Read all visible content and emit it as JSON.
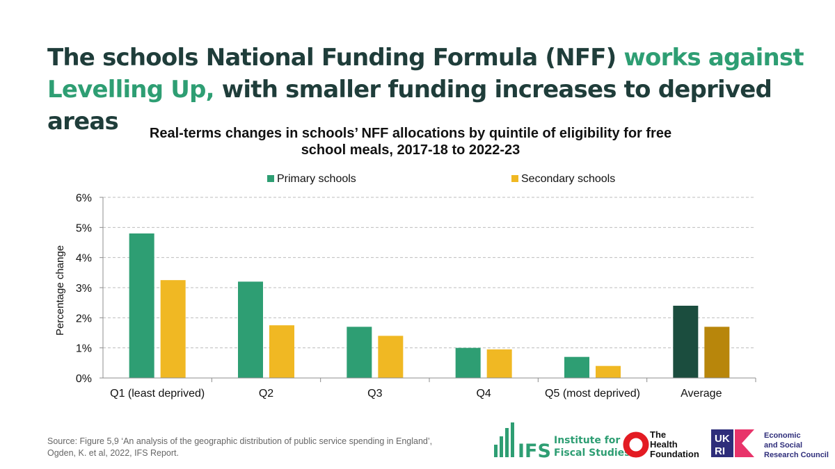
{
  "headline": {
    "part1": "The schools National Funding Formula (NFF) ",
    "highlight": "works against Levelling Up,",
    "part2": " with smaller funding increases to deprived areas"
  },
  "colors": {
    "headline": "#1f3d3a",
    "highlight": "#2e9e73",
    "primary": "#2e9e73",
    "secondary": "#f0b823",
    "primary_avg": "#1b4d3e",
    "secondary_avg": "#b8860b"
  },
  "chart_data": {
    "type": "bar",
    "title": "Real-terms changes in schools’ NFF allocations by quintile of eligibility for free school meals, 2017-18 to 2022-23",
    "title_lines": [
      "Real-terms changes in schools’ NFF allocations by quintile of eligibility for free",
      "school meals, 2017-18 to 2022-23"
    ],
    "ylabel": "Percentage change",
    "xlabel": "",
    "ylim": [
      0,
      6
    ],
    "yticks": [
      0,
      1,
      2,
      3,
      4,
      5,
      6
    ],
    "ytick_labels": [
      "0%",
      "1%",
      "2%",
      "3%",
      "4%",
      "5%",
      "6%"
    ],
    "grid": true,
    "legend": "top",
    "categories": [
      "Q1 (least deprived)",
      "Q2",
      "Q3",
      "Q4",
      "Q5 (most deprived)",
      "Average"
    ],
    "series": [
      {
        "name": "Primary schools",
        "values": [
          4.8,
          3.2,
          1.7,
          1.0,
          0.7,
          2.4
        ]
      },
      {
        "name": "Secondary schools",
        "values": [
          3.25,
          1.75,
          1.4,
          0.95,
          0.4,
          1.7
        ]
      }
    ]
  },
  "source": {
    "line1": "Source: Figure 5,9 ‘An analysis of the geographic distribution of public service spending in England’,",
    "line2": "Ogden, K. et al, 2022, IFS Report."
  },
  "logos": {
    "ifs": {
      "name": "IFS",
      "line1": "Institute for",
      "line2": "Fiscal Studies",
      "icon": "ifs-bars-icon"
    },
    "health": {
      "line1": "The",
      "line2": "Health",
      "line3": "Foundation",
      "icon": "health-ring-icon"
    },
    "esrc": {
      "badge_top": "UK",
      "badge_bottom": "RI",
      "line1": "Economic",
      "line2": "and Social",
      "line3": "Research Council",
      "icon": "ukri-arrow-icon"
    }
  }
}
